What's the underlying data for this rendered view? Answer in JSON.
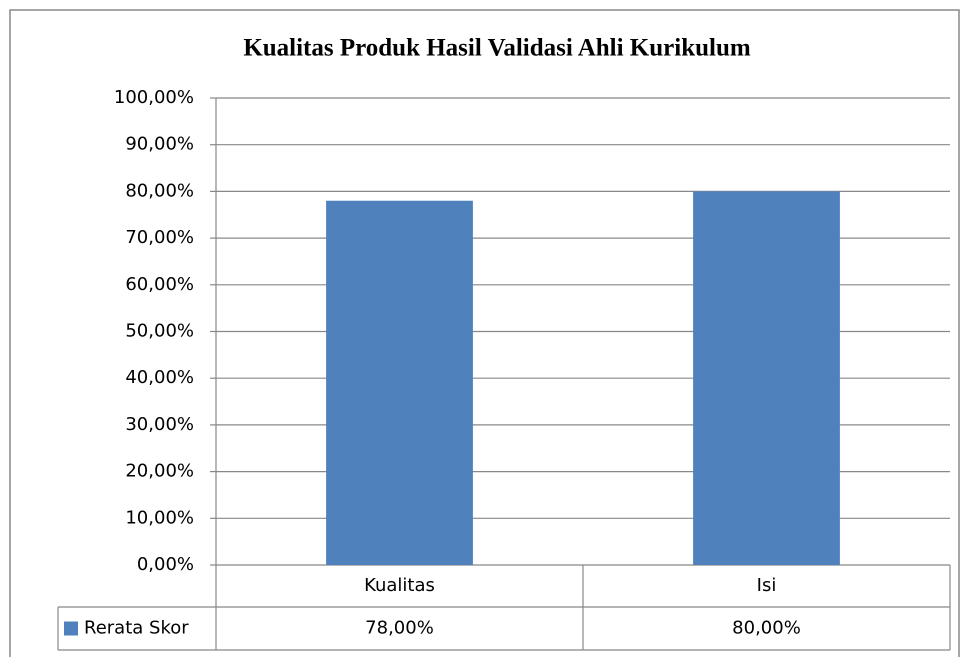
{
  "chart_data": {
    "type": "bar",
    "title": "Kualitas Produk Hasil Validasi Ahli Kurikulum",
    "categories": [
      "Kualitas",
      "Isi"
    ],
    "series": [
      {
        "name": "Rerata Skor",
        "color": "#4f81bd",
        "values": [
          78,
          80
        ],
        "value_labels": [
          "78,00%",
          "80,00%"
        ]
      }
    ],
    "ylim": [
      0,
      100
    ],
    "yticks": [
      {
        "value": 0,
        "label": "0,00%"
      },
      {
        "value": 10,
        "label": "10,00%"
      },
      {
        "value": 20,
        "label": "20,00%"
      },
      {
        "value": 30,
        "label": "30,00%"
      },
      {
        "value": 40,
        "label": "40,00%"
      },
      {
        "value": 50,
        "label": "50,00%"
      },
      {
        "value": 60,
        "label": "60,00%"
      },
      {
        "value": 70,
        "label": "70,00%"
      },
      {
        "value": 80,
        "label": "80,00%"
      },
      {
        "value": 90,
        "label": "90,00%"
      },
      {
        "value": 100,
        "label": "100,00%"
      }
    ],
    "grid": true
  }
}
